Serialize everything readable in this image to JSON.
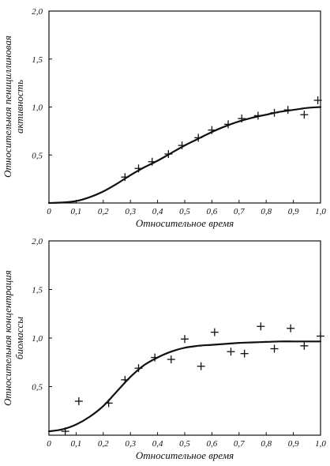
{
  "chart_data": [
    {
      "type": "line",
      "xlabel": "Относительное время",
      "ylabel_lines": [
        "Относительная пенициллиновая",
        "активность"
      ],
      "xlim": [
        0,
        1.0
      ],
      "ylim": [
        0,
        2.0
      ],
      "xticks": [
        "0",
        "0,1",
        "0,2",
        "0,3",
        "0,4",
        "0,5",
        "0,6",
        "0,7",
        "0,8",
        "0,9",
        "1,0"
      ],
      "yticks": [
        "0,5",
        "1,0",
        "1,5",
        "2,0"
      ],
      "grid": false,
      "curve": {
        "x": [
          0,
          0.05,
          0.1,
          0.15,
          0.2,
          0.25,
          0.3,
          0.35,
          0.4,
          0.45,
          0.5,
          0.55,
          0.6,
          0.65,
          0.7,
          0.75,
          0.8,
          0.85,
          0.9,
          0.95,
          1.0
        ],
        "y": [
          0,
          0.005,
          0.02,
          0.06,
          0.12,
          0.2,
          0.29,
          0.37,
          0.44,
          0.52,
          0.6,
          0.67,
          0.74,
          0.8,
          0.85,
          0.89,
          0.92,
          0.95,
          0.97,
          0.99,
          1.0
        ]
      },
      "points": {
        "x": [
          0.28,
          0.33,
          0.38,
          0.44,
          0.49,
          0.55,
          0.6,
          0.66,
          0.71,
          0.77,
          0.83,
          0.88,
          0.94,
          0.99
        ],
        "y": [
          0.27,
          0.36,
          0.43,
          0.51,
          0.6,
          0.68,
          0.76,
          0.82,
          0.88,
          0.91,
          0.94,
          0.97,
          0.92,
          1.07
        ]
      }
    },
    {
      "type": "line",
      "xlabel": "Относительное время",
      "ylabel_lines": [
        "Относительная концентрация",
        "биомассы"
      ],
      "xlim": [
        0,
        1.0
      ],
      "ylim": [
        0,
        2.0
      ],
      "xticks": [
        "0",
        "0,1",
        "0,2",
        "0,3",
        "0,4",
        "0,5",
        "0,6",
        "0,7",
        "0,8",
        "0,9",
        "1,0"
      ],
      "yticks": [
        "0,5",
        "1,0",
        "1,5",
        "2,0"
      ],
      "grid": false,
      "curve": {
        "x": [
          0,
          0.05,
          0.1,
          0.15,
          0.2,
          0.25,
          0.3,
          0.35,
          0.4,
          0.45,
          0.5,
          0.55,
          0.6,
          0.65,
          0.7,
          0.75,
          0.8,
          0.85,
          0.9,
          0.95,
          1.0
        ],
        "y": [
          0.04,
          0.06,
          0.11,
          0.19,
          0.3,
          0.45,
          0.6,
          0.72,
          0.8,
          0.86,
          0.9,
          0.92,
          0.93,
          0.94,
          0.95,
          0.955,
          0.96,
          0.965,
          0.965,
          0.965,
          0.965
        ]
      },
      "points": {
        "x": [
          0.06,
          0.11,
          0.22,
          0.28,
          0.33,
          0.39,
          0.45,
          0.5,
          0.56,
          0.61,
          0.67,
          0.72,
          0.78,
          0.83,
          0.89,
          0.94,
          1.0
        ],
        "y": [
          0.04,
          0.35,
          0.33,
          0.57,
          0.69,
          0.8,
          0.78,
          0.99,
          0.71,
          1.06,
          0.86,
          0.84,
          1.12,
          0.89,
          1.1,
          0.92,
          1.02
        ]
      }
    }
  ]
}
